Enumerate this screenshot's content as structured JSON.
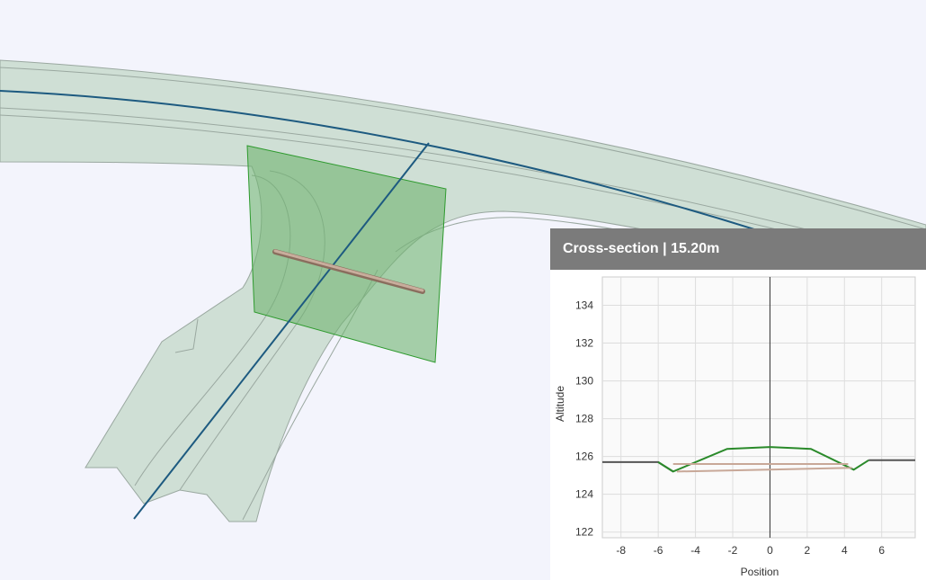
{
  "scene": {
    "colors": {
      "background": "#f3f4fc",
      "terrain": "#cfdfd5",
      "section_plane": "#6fb46f",
      "alignment": "#1d5a80",
      "pipe": "#b89c88"
    }
  },
  "panel": {
    "title": "Cross-section | 15.20m"
  },
  "chart_data": {
    "type": "line",
    "title": "",
    "xlabel": "Position",
    "ylabel": "Altitude",
    "xlim": [
      -9,
      7.8
    ],
    "ylim": [
      121.7,
      135.5
    ],
    "xticks": [
      -8,
      -6,
      -4,
      -2,
      0,
      2,
      4,
      6
    ],
    "yticks": [
      122,
      124,
      126,
      128,
      130,
      132,
      134
    ],
    "grid": true,
    "series": [
      {
        "key": "terrain",
        "color": "#555555",
        "points": [
          [
            -9,
            125.7
          ],
          [
            -6,
            125.7
          ],
          [
            -5.2,
            125.2
          ]
        ]
      },
      {
        "key": "terrain-right",
        "color": "#555555",
        "points": [
          [
            5.3,
            125.8
          ],
          [
            7.8,
            125.8
          ]
        ]
      },
      {
        "key": "road-surface",
        "color": "#2a8a2a",
        "points": [
          [
            -6,
            125.7
          ],
          [
            -5.2,
            125.2
          ],
          [
            -2.3,
            126.4
          ],
          [
            0,
            126.5
          ],
          [
            2.2,
            126.4
          ],
          [
            4.5,
            125.3
          ],
          [
            5.3,
            125.8
          ]
        ]
      },
      {
        "key": "pipe-top",
        "color": "#c8a898",
        "points": [
          [
            -5.2,
            125.6
          ],
          [
            4.2,
            125.6
          ]
        ]
      },
      {
        "key": "pipe-bottom",
        "color": "#c8a898",
        "points": [
          [
            -5.0,
            125.2
          ],
          [
            4.4,
            125.4
          ]
        ]
      }
    ],
    "reference_x": 0
  }
}
